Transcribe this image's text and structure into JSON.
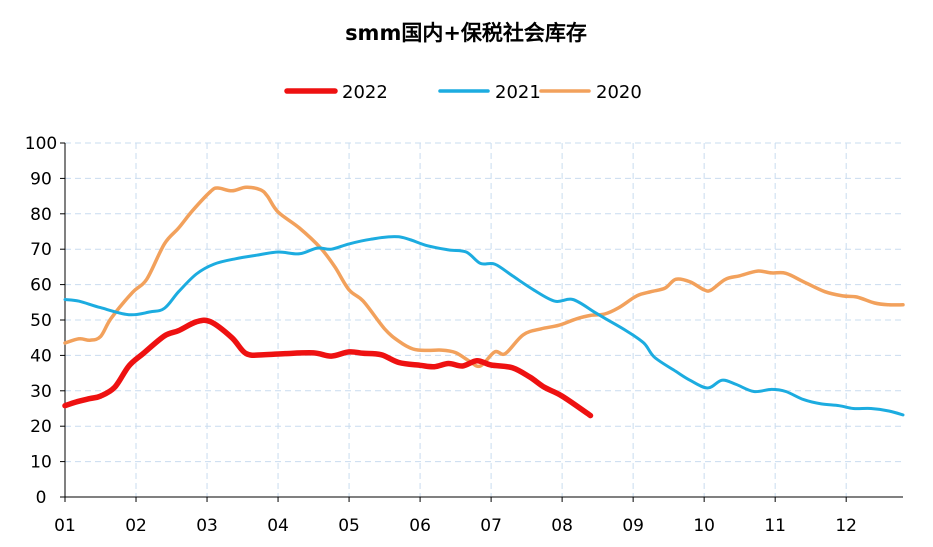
{
  "chart_data": {
    "type": "line",
    "title": "smm国内+保税社会库存",
    "xlabel": "",
    "ylabel": "",
    "ylim": [
      0,
      100
    ],
    "y_ticks": [
      0,
      10,
      20,
      30,
      40,
      50,
      60,
      70,
      80,
      90,
      100
    ],
    "x_ticks": [
      "01",
      "02",
      "03",
      "04",
      "05",
      "06",
      "07",
      "08",
      "09",
      "10",
      "11",
      "12"
    ],
    "x_domain_months": [
      1,
      12.8
    ],
    "grid": true,
    "legend_position": "top-center",
    "series": [
      {
        "name": "2022",
        "color": "#ee1111",
        "points": [
          [
            1.0,
            25.8
          ],
          [
            1.15,
            26.8
          ],
          [
            1.35,
            27.8
          ],
          [
            1.5,
            28.5
          ],
          [
            1.7,
            31
          ],
          [
            1.9,
            37
          ],
          [
            2.1,
            40.5
          ],
          [
            2.4,
            45.5
          ],
          [
            2.6,
            47
          ],
          [
            2.85,
            49.5
          ],
          [
            3.05,
            49.5
          ],
          [
            3.35,
            45
          ],
          [
            3.55,
            40.5
          ],
          [
            3.8,
            40.2
          ],
          [
            4.1,
            40.5
          ],
          [
            4.5,
            40.7
          ],
          [
            4.75,
            39.8
          ],
          [
            5.0,
            41
          ],
          [
            5.2,
            40.6
          ],
          [
            5.45,
            40.2
          ],
          [
            5.7,
            38
          ],
          [
            6.0,
            37.2
          ],
          [
            6.2,
            36.8
          ],
          [
            6.4,
            37.7
          ],
          [
            6.6,
            37
          ],
          [
            6.8,
            38.5
          ],
          [
            7.0,
            37.3
          ],
          [
            7.3,
            36.5
          ],
          [
            7.55,
            33.8
          ],
          [
            7.75,
            31
          ],
          [
            8.0,
            28.5
          ],
          [
            8.4,
            23
          ]
        ]
      },
      {
        "name": "2021",
        "color": "#1cace0",
        "points": [
          [
            1.0,
            55.8
          ],
          [
            1.2,
            55.3
          ],
          [
            1.5,
            53.5
          ],
          [
            1.9,
            51.5
          ],
          [
            2.2,
            52.3
          ],
          [
            2.4,
            53.3
          ],
          [
            2.6,
            58
          ],
          [
            2.85,
            63
          ],
          [
            3.1,
            65.8
          ],
          [
            3.4,
            67.3
          ],
          [
            3.7,
            68.3
          ],
          [
            4.0,
            69.2
          ],
          [
            4.3,
            68.7
          ],
          [
            4.55,
            70.3
          ],
          [
            4.75,
            70
          ],
          [
            5.0,
            71.5
          ],
          [
            5.3,
            72.8
          ],
          [
            5.7,
            73.5
          ],
          [
            6.1,
            71
          ],
          [
            6.4,
            69.8
          ],
          [
            6.65,
            69.2
          ],
          [
            6.85,
            66
          ],
          [
            7.05,
            65.8
          ],
          [
            7.3,
            62.5
          ],
          [
            7.6,
            58.5
          ],
          [
            7.9,
            55.3
          ],
          [
            8.15,
            55.8
          ],
          [
            8.45,
            52.3
          ],
          [
            8.6,
            50.5
          ],
          [
            8.9,
            47
          ],
          [
            9.15,
            43.5
          ],
          [
            9.3,
            39.5
          ],
          [
            9.6,
            35.5
          ],
          [
            9.8,
            33
          ],
          [
            10.05,
            30.8
          ],
          [
            10.25,
            33
          ],
          [
            10.45,
            31.8
          ],
          [
            10.7,
            29.8
          ],
          [
            10.95,
            30.4
          ],
          [
            11.15,
            29.8
          ],
          [
            11.4,
            27.5
          ],
          [
            11.65,
            26.3
          ],
          [
            11.9,
            25.8
          ],
          [
            12.1,
            25
          ],
          [
            12.35,
            25
          ],
          [
            12.6,
            24.3
          ],
          [
            12.8,
            23.2
          ]
        ]
      },
      {
        "name": "2020",
        "color": "#f2a15c",
        "points": [
          [
            1.0,
            43.5
          ],
          [
            1.2,
            44.7
          ],
          [
            1.35,
            44.3
          ],
          [
            1.5,
            45.3
          ],
          [
            1.65,
            50.5
          ],
          [
            1.95,
            57.8
          ],
          [
            2.15,
            61.5
          ],
          [
            2.4,
            71.5
          ],
          [
            2.6,
            76
          ],
          [
            2.8,
            81
          ],
          [
            3.05,
            86.3
          ],
          [
            3.15,
            87.3
          ],
          [
            3.35,
            86.5
          ],
          [
            3.55,
            87.5
          ],
          [
            3.75,
            86.8
          ],
          [
            3.85,
            85
          ],
          [
            4.0,
            80.5
          ],
          [
            4.3,
            76
          ],
          [
            4.6,
            70.3
          ],
          [
            4.8,
            65
          ],
          [
            5.0,
            58.5
          ],
          [
            5.2,
            55.3
          ],
          [
            5.5,
            47.5
          ],
          [
            5.7,
            44
          ],
          [
            5.9,
            41.8
          ],
          [
            6.1,
            41.4
          ],
          [
            6.3,
            41.5
          ],
          [
            6.5,
            40.8
          ],
          [
            6.7,
            38.3
          ],
          [
            6.85,
            37
          ],
          [
            7.05,
            41
          ],
          [
            7.2,
            40.5
          ],
          [
            7.45,
            45.8
          ],
          [
            7.7,
            47.5
          ],
          [
            7.95,
            48.5
          ],
          [
            8.2,
            50.3
          ],
          [
            8.4,
            51.3
          ],
          [
            8.6,
            51.7
          ],
          [
            8.8,
            53.5
          ],
          [
            9.05,
            56.8
          ],
          [
            9.25,
            58
          ],
          [
            9.45,
            59
          ],
          [
            9.6,
            61.5
          ],
          [
            9.8,
            60.8
          ],
          [
            10.0,
            58.5
          ],
          [
            10.1,
            58.5
          ],
          [
            10.3,
            61.5
          ],
          [
            10.5,
            62.5
          ],
          [
            10.75,
            63.8
          ],
          [
            10.95,
            63.3
          ],
          [
            11.15,
            63.2
          ],
          [
            11.4,
            60.8
          ],
          [
            11.7,
            58
          ],
          [
            11.95,
            56.8
          ],
          [
            12.15,
            56.5
          ],
          [
            12.4,
            54.8
          ],
          [
            12.6,
            54.3
          ],
          [
            12.8,
            54.3
          ]
        ]
      }
    ]
  }
}
